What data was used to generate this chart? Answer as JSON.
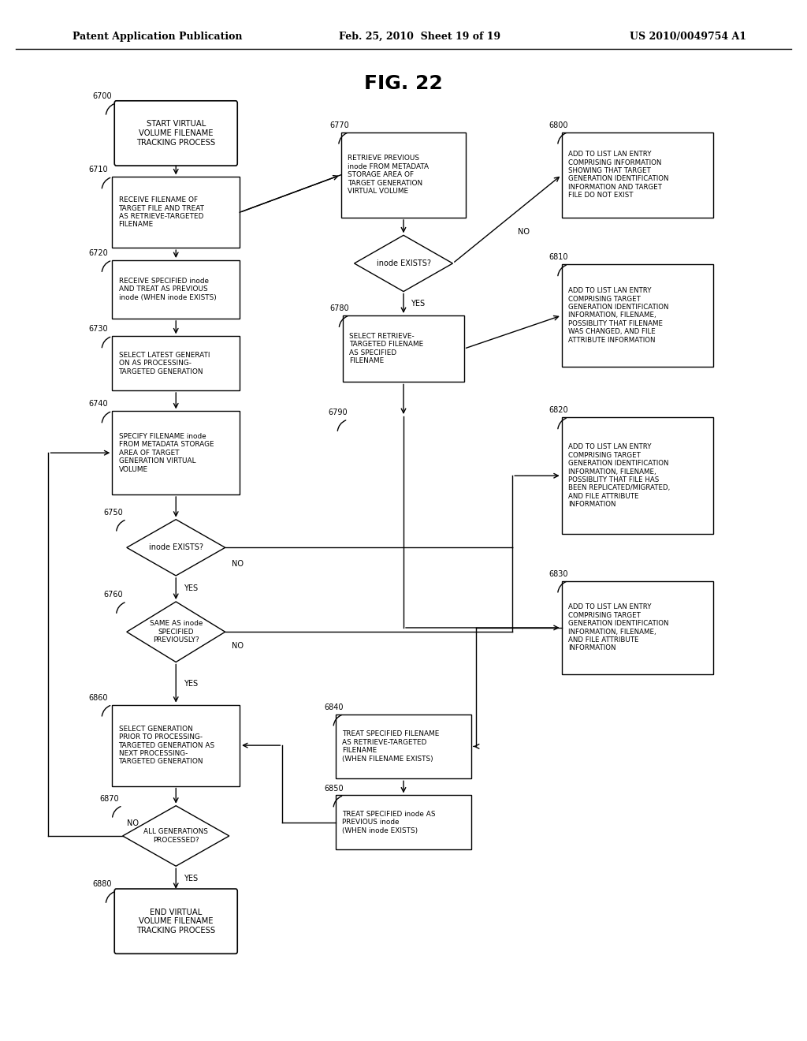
{
  "title": "FIG. 22",
  "header_left": "Patent Application Publication",
  "header_mid": "Feb. 25, 2010  Sheet 19 of 19",
  "header_right": "US 2010/0049754 A1",
  "bg_color": "#ffffff"
}
